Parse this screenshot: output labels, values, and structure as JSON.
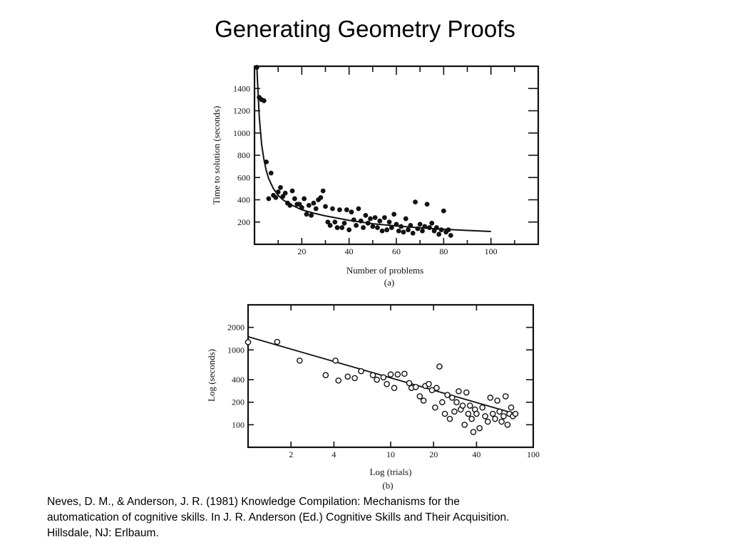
{
  "slide": {
    "title": "Generating Geometry Proofs",
    "citation": [
      "Neves, D. M., & Anderson, J. R. (1981) Knowledge Compilation: Mechanisms for the",
      "automatication of cognitive skills. In J. R. Anderson (Ed.) Cognitive Skills and Their Acquisition.",
      "Hillsdale, NJ: Erlbaum."
    ]
  },
  "chart_data": [
    {
      "type": "scatter",
      "panel_label": "(a)",
      "xlabel": "Number of problems",
      "ylabel": "Time to solution (seconds)",
      "xlim": [
        0,
        120
      ],
      "ylim": [
        0,
        1600
      ],
      "xticks": [
        20,
        40,
        60,
        80,
        100
      ],
      "yticks": [
        200,
        400,
        600,
        800,
        1000,
        1200,
        1400
      ],
      "marker": "filled",
      "series": [
        {
          "points": [
            [
              1,
              1590
            ],
            [
              2,
              1320
            ],
            [
              3,
              1300
            ],
            [
              4,
              1290
            ],
            [
              5,
              740
            ],
            [
              6,
              410
            ],
            [
              7,
              640
            ],
            [
              8,
              440
            ],
            [
              9,
              420
            ],
            [
              10,
              470
            ],
            [
              11,
              510
            ],
            [
              12,
              430
            ],
            [
              13,
              460
            ],
            [
              14,
              370
            ],
            [
              15,
              350
            ],
            [
              16,
              480
            ],
            [
              17,
              410
            ],
            [
              18,
              360
            ],
            [
              19,
              360
            ],
            [
              20,
              330
            ],
            [
              21,
              410
            ],
            [
              22,
              270
            ],
            [
              23,
              350
            ],
            [
              24,
              260
            ],
            [
              25,
              370
            ],
            [
              26,
              320
            ],
            [
              27,
              400
            ],
            [
              28,
              420
            ],
            [
              29,
              480
            ],
            [
              30,
              340
            ],
            [
              31,
              200
            ],
            [
              32,
              170
            ],
            [
              33,
              320
            ],
            [
              34,
              200
            ],
            [
              35,
              150
            ],
            [
              36,
              310
            ],
            [
              37,
              150
            ],
            [
              38,
              190
            ],
            [
              39,
              310
            ],
            [
              40,
              130
            ],
            [
              41,
              290
            ],
            [
              42,
              220
            ],
            [
              43,
              170
            ],
            [
              44,
              320
            ],
            [
              45,
              210
            ],
            [
              46,
              150
            ],
            [
              47,
              260
            ],
            [
              48,
              190
            ],
            [
              49,
              230
            ],
            [
              50,
              160
            ],
            [
              51,
              240
            ],
            [
              52,
              150
            ],
            [
              53,
              210
            ],
            [
              54,
              120
            ],
            [
              55,
              240
            ],
            [
              56,
              130
            ],
            [
              57,
              200
            ],
            [
              58,
              150
            ],
            [
              59,
              270
            ],
            [
              60,
              180
            ],
            [
              61,
              120
            ],
            [
              62,
              160
            ],
            [
              63,
              110
            ],
            [
              64,
              230
            ],
            [
              65,
              130
            ],
            [
              66,
              170
            ],
            [
              67,
              100
            ],
            [
              68,
              380
            ],
            [
              69,
              140
            ],
            [
              70,
              180
            ],
            [
              71,
              120
            ],
            [
              72,
              160
            ],
            [
              73,
              360
            ],
            [
              74,
              150
            ],
            [
              75,
              190
            ],
            [
              76,
              120
            ],
            [
              77,
              150
            ],
            [
              78,
              90
            ],
            [
              79,
              130
            ],
            [
              80,
              300
            ],
            [
              81,
              110
            ],
            [
              82,
              130
            ],
            [
              83,
              80
            ]
          ]
        },
        {
          "type": "line",
          "points": [
            [
              1,
              1590
            ],
            [
              2,
              1150
            ],
            [
              3,
              900
            ],
            [
              4,
              760
            ],
            [
              5,
              660
            ],
            [
              6,
              590
            ],
            [
              8,
              500
            ],
            [
              10,
              440
            ],
            [
              12,
              400
            ],
            [
              15,
              360
            ],
            [
              20,
              310
            ],
            [
              25,
              280
            ],
            [
              30,
              255
            ],
            [
              40,
              215
            ],
            [
              50,
              185
            ],
            [
              60,
              165
            ],
            [
              70,
              148
            ],
            [
              80,
              135
            ],
            [
              90,
              125
            ],
            [
              100,
              115
            ]
          ]
        }
      ]
    },
    {
      "type": "scatter",
      "panel_label": "(b)",
      "xlabel": "Log (trials)",
      "ylabel": "Log (seconds)",
      "x_scale": "log",
      "y_scale": "log",
      "xlim": [
        1,
        100
      ],
      "ylim": [
        50,
        4000
      ],
      "xticks": [
        2,
        4,
        10,
        20,
        40,
        100
      ],
      "yticks": [
        100,
        200,
        400,
        1000,
        2000
      ],
      "marker": "open",
      "series": [
        {
          "points": [
            [
              1,
              1270
            ],
            [
              1.6,
              1280
            ],
            [
              2.3,
              720
            ],
            [
              3.5,
              460
            ],
            [
              4.1,
              720
            ],
            [
              4.3,
              390
            ],
            [
              5.0,
              440
            ],
            [
              5.6,
              420
            ],
            [
              6.2,
              520
            ],
            [
              7.5,
              460
            ],
            [
              8.0,
              400
            ],
            [
              8.9,
              430
            ],
            [
              9.4,
              350
            ],
            [
              10.0,
              470
            ],
            [
              10.6,
              310
            ],
            [
              11.2,
              470
            ],
            [
              12.5,
              480
            ],
            [
              13.5,
              360
            ],
            [
              14.0,
              310
            ],
            [
              15.0,
              320
            ],
            [
              16.0,
              240
            ],
            [
              17.0,
              210
            ],
            [
              17.5,
              330
            ],
            [
              18.5,
              350
            ],
            [
              19.5,
              290
            ],
            [
              20.5,
              170
            ],
            [
              21.0,
              310
            ],
            [
              22.0,
              600
            ],
            [
              23.0,
              200
            ],
            [
              24.0,
              140
            ],
            [
              25.0,
              250
            ],
            [
              26.0,
              120
            ],
            [
              27.0,
              230
            ],
            [
              28.0,
              150
            ],
            [
              29.0,
              200
            ],
            [
              30.0,
              280
            ],
            [
              31.0,
              160
            ],
            [
              32.0,
              180
            ],
            [
              33.0,
              100
            ],
            [
              34.0,
              270
            ],
            [
              35.0,
              140
            ],
            [
              36.0,
              180
            ],
            [
              37.0,
              120
            ],
            [
              38.0,
              80
            ],
            [
              39.0,
              160
            ],
            [
              40.0,
              140
            ],
            [
              42.0,
              90
            ],
            [
              44.0,
              170
            ],
            [
              46.0,
              130
            ],
            [
              48.0,
              110
            ],
            [
              50.0,
              230
            ],
            [
              52.0,
              140
            ],
            [
              54.0,
              120
            ],
            [
              56.0,
              210
            ],
            [
              58.0,
              150
            ],
            [
              60.0,
              110
            ],
            [
              62.0,
              130
            ],
            [
              64.0,
              240
            ],
            [
              66.0,
              100
            ],
            [
              68.0,
              140
            ],
            [
              70.0,
              170
            ],
            [
              72.0,
              130
            ],
            [
              75.0,
              140
            ]
          ]
        },
        {
          "type": "line",
          "points": [
            [
              1,
              1500
            ],
            [
              75,
              140
            ]
          ]
        }
      ]
    }
  ]
}
